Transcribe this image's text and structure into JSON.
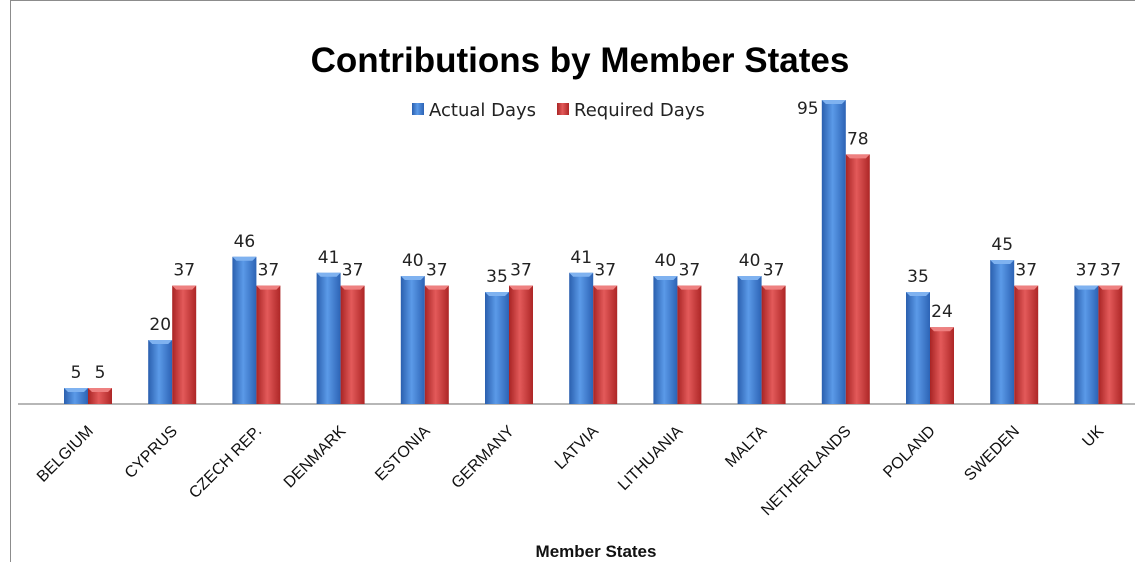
{
  "chart_data": {
    "type": "bar",
    "title": "Contributions by Member States",
    "xlabel": "Member States",
    "ylabel": "",
    "categories": [
      "BELGIUM",
      "CYPRUS",
      "CZECH REP.",
      "DENMARK",
      "ESTONIA",
      "GERMANY",
      "LATVIA",
      "LITHUANIA",
      "MALTA",
      "NETHERLANDS",
      "POLAND",
      "SWEDEN",
      "UK"
    ],
    "series": [
      {
        "name": "Actual Days",
        "color": "#3a78cf",
        "values": [
          5,
          20,
          46,
          41,
          40,
          35,
          41,
          40,
          40,
          95,
          35,
          45,
          37
        ]
      },
      {
        "name": "Required Days",
        "color": "#cc3333",
        "values": [
          5,
          37,
          37,
          37,
          37,
          37,
          37,
          37,
          37,
          78,
          24,
          37,
          37
        ]
      }
    ],
    "ylim": [
      0,
      95
    ],
    "grid": false,
    "legend_position": "top"
  }
}
